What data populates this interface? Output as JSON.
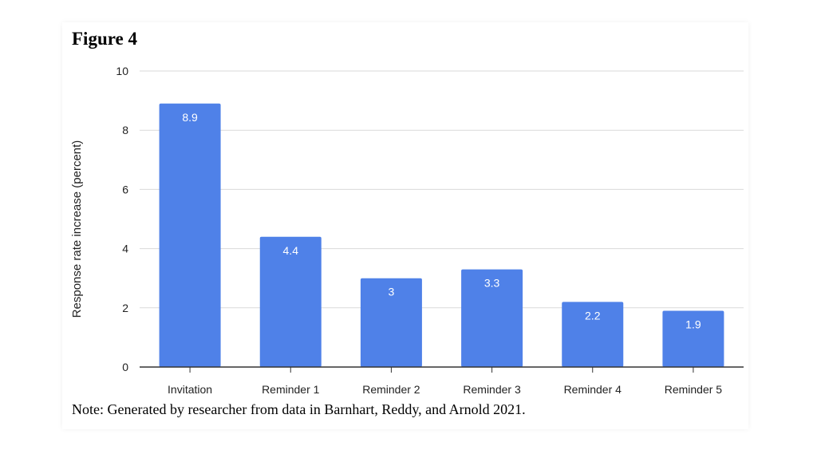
{
  "figure": {
    "label": "Figure 4",
    "note": "Note: Generated by researcher from data in Barnhart, Reddy, and Arnold 2021."
  },
  "chart_data": {
    "type": "bar",
    "title": "",
    "xlabel": "",
    "ylabel": "Response rate increase (percent)",
    "categories": [
      "Invitation",
      "Reminder 1",
      "Reminder 2",
      "Reminder 3",
      "Reminder 4",
      "Reminder 5"
    ],
    "values": [
      8.9,
      4.4,
      3,
      3.3,
      2.2,
      1.9
    ],
    "value_labels": [
      "8.9",
      "4.4",
      "3",
      "3.3",
      "2.2",
      "1.9"
    ],
    "ylim": [
      0,
      10
    ],
    "yticks": [
      0,
      2,
      4,
      6,
      8,
      10
    ],
    "ytick_labels": [
      "0",
      "2",
      "4",
      "6",
      "8",
      "10"
    ],
    "grid": true,
    "legend": "none",
    "bar_color": "#4f81e8",
    "label_color": "#ffffff",
    "grid_color": "#d9d9d9",
    "axis_color": "#333333"
  }
}
